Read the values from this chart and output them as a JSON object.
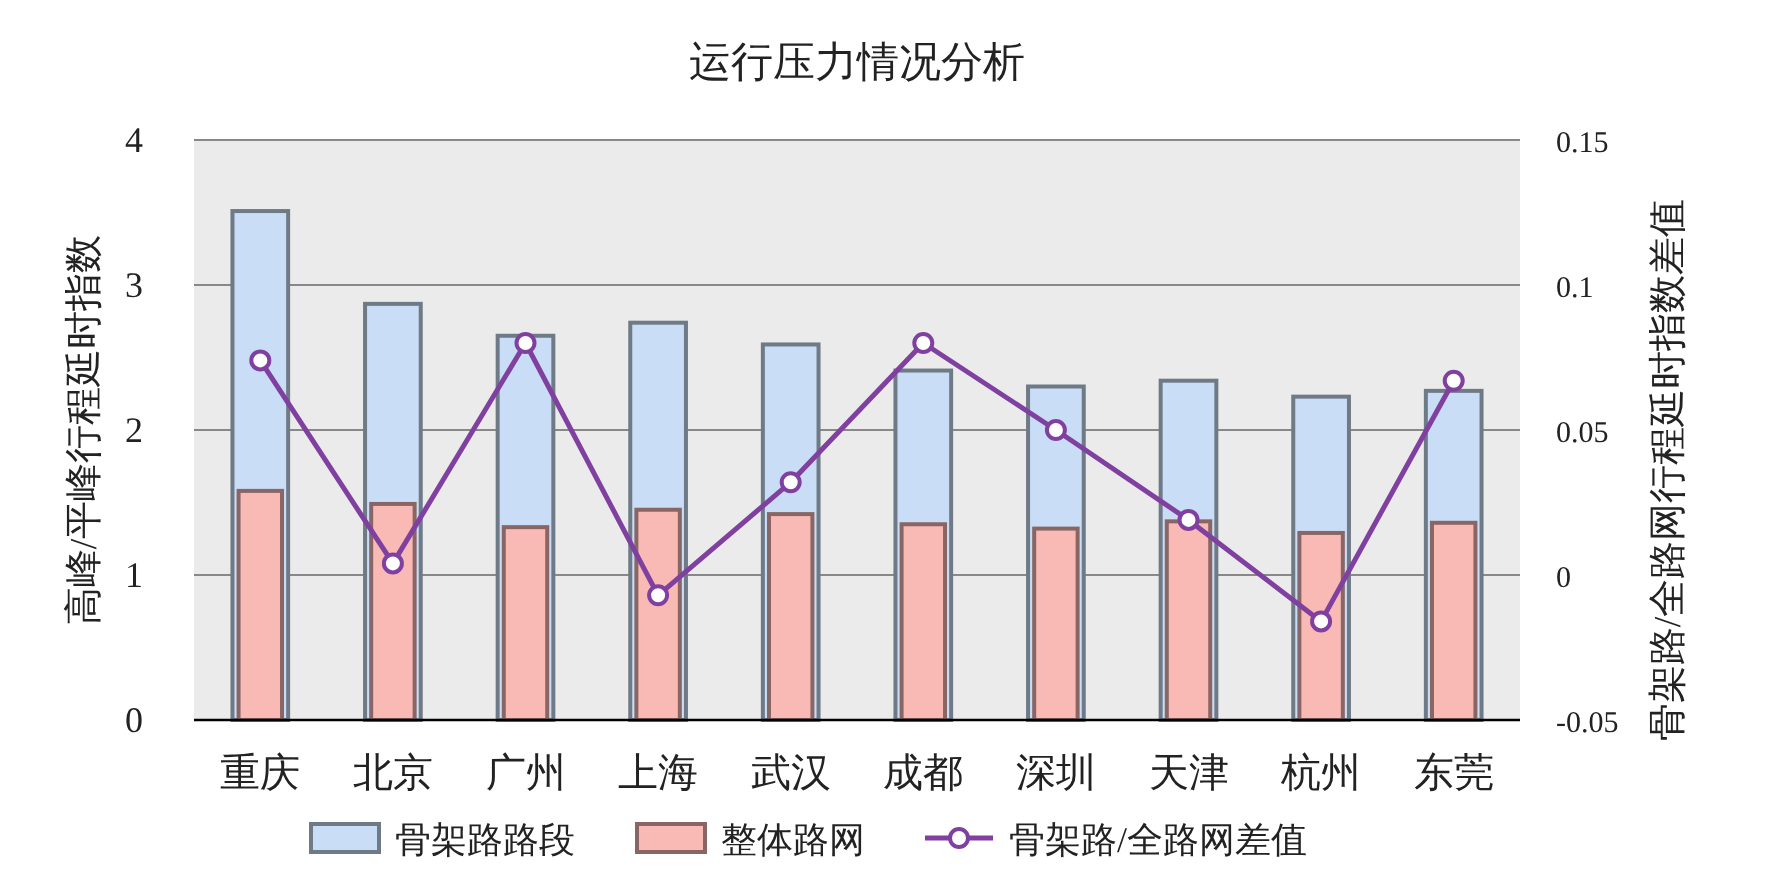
{
  "chart_data": {
    "type": "bar",
    "title": "运行压力情况分析",
    "ylabel": "高峰/平峰行程延时指数",
    "y2label": "骨架路/全路网行程延时指数差值",
    "categories": [
      "重庆",
      "北京",
      "广州",
      "上海",
      "武汉",
      "成都",
      "深圳",
      "天津",
      "杭州",
      "东莞"
    ],
    "series": [
      {
        "name": "骨架路路段",
        "color": "#c9ddf6",
        "values": [
          3.51,
          2.87,
          2.65,
          2.74,
          2.59,
          2.41,
          2.3,
          2.34,
          2.23,
          2.27
        ]
      },
      {
        "name": "整体路网",
        "color": "#f9b9b5",
        "values": [
          1.58,
          1.49,
          1.33,
          1.45,
          1.42,
          1.35,
          1.32,
          1.37,
          1.29,
          1.36
        ]
      },
      {
        "name": "骨架路/全路网差值",
        "type": "line",
        "axis": "y2",
        "color": "#8040a0",
        "values": [
          0.074,
          0.004,
          0.08,
          -0.007,
          0.032,
          0.08,
          0.05,
          0.019,
          -0.016,
          0.067
        ]
      }
    ],
    "ylim": [
      0,
      4
    ],
    "yticks": [
      0,
      1,
      2,
      3,
      4
    ],
    "y2lim": [
      -0.05,
      0.15
    ],
    "y2ticks": [
      -0.05,
      0,
      0.05,
      0.1,
      0.15
    ],
    "grid": "y",
    "legend": "bottom",
    "marker": "circle"
  }
}
